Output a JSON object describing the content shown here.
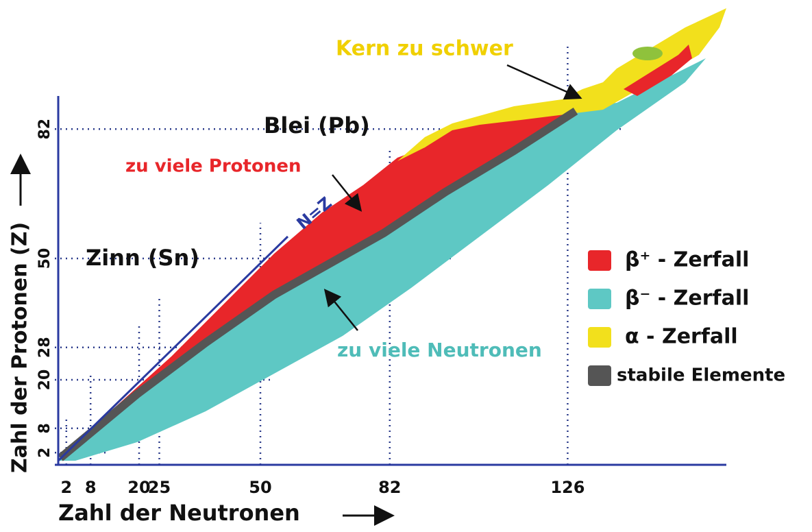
{
  "axes": {
    "x": {
      "label": "Zahl der Neutronen",
      "ticks": [
        2,
        8,
        20,
        25,
        50,
        82,
        126
      ]
    },
    "y": {
      "label": "Zahl der Protonen (Z)",
      "ticks": [
        2,
        8,
        20,
        28,
        50,
        82
      ]
    }
  },
  "annotations": {
    "too_heavy": "Kern zu schwer",
    "lead": "Blei (Pb)",
    "too_many_protons": "zu viele Protonen",
    "nz": "N=Z",
    "tin": "Zinn (Sn)",
    "too_many_neutrons": "zu viele Neutronen"
  },
  "legend": [
    {
      "label": "β⁺ - Zerfall",
      "color": "#e8262a"
    },
    {
      "label": "β⁻ - Zerfall",
      "color": "#5ec8c4"
    },
    {
      "label": "α - Zerfall",
      "color": "#f2e01c"
    },
    {
      "label": "stabile Elemente",
      "color": "#555555"
    }
  ]
}
